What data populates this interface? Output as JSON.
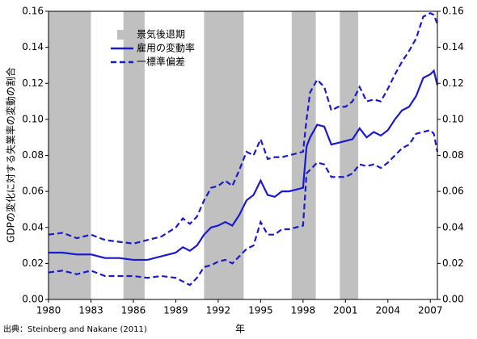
{
  "chart_data": {
    "type": "line",
    "y_label": "GDPの変化に対する失業率の変動の割合",
    "x_label": "年",
    "source": "出典：Steinberg and Nakane (2011)",
    "xlim": [
      1980,
      2007.5
    ],
    "xticks": [
      1980,
      1983,
      1986,
      1989,
      1992,
      1995,
      1998,
      2001,
      2004,
      2007
    ],
    "ylim": [
      0,
      0.16
    ],
    "yticks": [
      {
        "value": 0,
        "label": "0.00"
      },
      {
        "value": 0.02,
        "label": "0.02"
      },
      {
        "value": 0.04,
        "label": "0.04"
      },
      {
        "value": 0.06,
        "label": "0.06"
      },
      {
        "value": 0.08,
        "label": "0.08"
      },
      {
        "value": 0.1,
        "label": "0.10"
      },
      {
        "value": 0.12,
        "label": "0.12"
      },
      {
        "value": 0.14,
        "label": "0.14"
      },
      {
        "value": 0.16,
        "label": "0.16"
      }
    ],
    "recession_label": "景気後退期",
    "recession_color": "#c0c0c0",
    "recessions": [
      [
        1980,
        1983
      ],
      [
        1985.3,
        1986.8
      ],
      [
        1991,
        1993.8
      ],
      [
        1997.2,
        1998.9
      ],
      [
        2000.6,
        2001.9
      ]
    ],
    "x": [
      1980,
      1981,
      1982,
      1983,
      1984,
      1985,
      1986,
      1987,
      1988,
      1989,
      1989.5,
      1990,
      1990.5,
      1991,
      1991.5,
      1992,
      1992.5,
      1993,
      1993.5,
      1994,
      1994.5,
      1995,
      1995.5,
      1996,
      1996.5,
      1997,
      1997.5,
      1998,
      1998.25,
      1998.5,
      1999,
      1999.5,
      2000,
      2000.5,
      2001,
      2001.5,
      2002,
      2002.5,
      2003,
      2003.5,
      2004,
      2004.5,
      2005,
      2005.5,
      2006,
      2006.5,
      2007,
      2007.25,
      2007.5
    ],
    "series": [
      {
        "name": "雇用の変動率",
        "color": "#1a1acc",
        "values": [
          0.026,
          0.026,
          0.025,
          0.025,
          0.023,
          0.023,
          0.022,
          0.022,
          0.024,
          0.026,
          0.029,
          0.027,
          0.03,
          0.036,
          0.04,
          0.041,
          0.043,
          0.041,
          0.047,
          0.055,
          0.058,
          0.066,
          0.058,
          0.057,
          0.06,
          0.06,
          0.061,
          0.062,
          0.085,
          0.09,
          0.097,
          0.096,
          0.086,
          0.087,
          0.088,
          0.089,
          0.095,
          0.09,
          0.093,
          0.091,
          0.094,
          0.1,
          0.105,
          0.107,
          0.113,
          0.123,
          0.125,
          0.127,
          0.119
        ]
      }
    ],
    "band": {
      "name": "一標準偏差",
      "color": "#1a1acc",
      "dashed": true,
      "upper": [
        0.036,
        0.037,
        0.034,
        0.036,
        0.033,
        0.032,
        0.031,
        0.033,
        0.035,
        0.04,
        0.045,
        0.042,
        0.046,
        0.055,
        0.062,
        0.063,
        0.066,
        0.063,
        0.072,
        0.082,
        0.08,
        0.089,
        0.078,
        0.079,
        0.079,
        0.08,
        0.081,
        0.082,
        0.1,
        0.115,
        0.122,
        0.118,
        0.105,
        0.107,
        0.107,
        0.11,
        0.118,
        0.11,
        0.111,
        0.11,
        0.117,
        0.125,
        0.132,
        0.138,
        0.145,
        0.157,
        0.159,
        0.158,
        0.153
      ],
      "lower": [
        0.015,
        0.016,
        0.014,
        0.016,
        0.013,
        0.013,
        0.013,
        0.012,
        0.013,
        0.012,
        0.01,
        0.008,
        0.012,
        0.018,
        0.019,
        0.021,
        0.022,
        0.02,
        0.024,
        0.028,
        0.03,
        0.043,
        0.036,
        0.036,
        0.039,
        0.039,
        0.04,
        0.041,
        0.07,
        0.072,
        0.076,
        0.075,
        0.068,
        0.068,
        0.068,
        0.07,
        0.075,
        0.074,
        0.075,
        0.073,
        0.076,
        0.08,
        0.084,
        0.086,
        0.092,
        0.093,
        0.094,
        0.092,
        0.082
      ]
    }
  }
}
